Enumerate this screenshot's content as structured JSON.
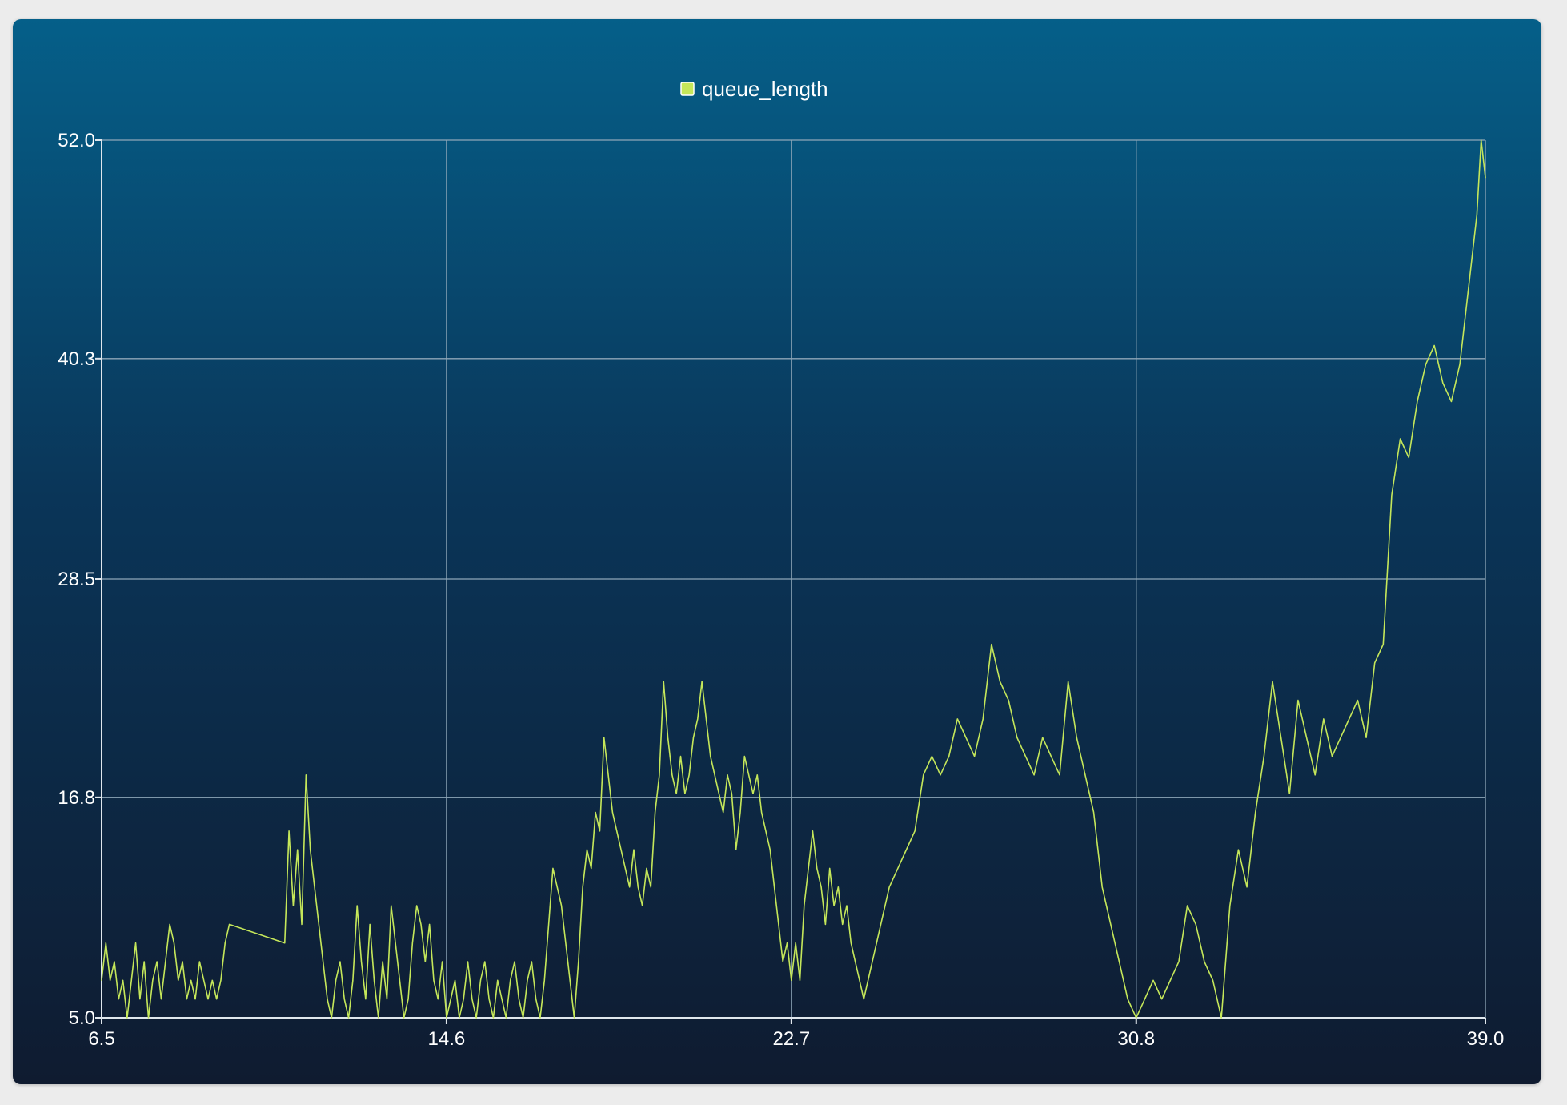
{
  "chart_data": {
    "type": "line",
    "title": "",
    "xlabel": "",
    "ylabel": "",
    "xlim": [
      6.5,
      39.0
    ],
    "ylim": [
      5.0,
      52.0
    ],
    "x_ticks": [
      "6.5",
      "14.6",
      "22.7",
      "30.8",
      "39.0"
    ],
    "y_ticks": [
      "52.0",
      "40.3",
      "28.5",
      "16.8",
      "5.0"
    ],
    "grid": true,
    "legend_position": "top-center",
    "series": [
      {
        "name": "queue_length",
        "color": "#c5e75a",
        "points": [
          [
            6.5,
            7
          ],
          [
            6.6,
            9
          ],
          [
            6.7,
            7
          ],
          [
            6.8,
            8
          ],
          [
            6.9,
            6
          ],
          [
            7.0,
            7
          ],
          [
            7.1,
            5
          ],
          [
            7.2,
            7
          ],
          [
            7.3,
            9
          ],
          [
            7.4,
            6
          ],
          [
            7.5,
            8
          ],
          [
            7.6,
            5
          ],
          [
            7.7,
            7
          ],
          [
            7.8,
            8
          ],
          [
            7.9,
            6
          ],
          [
            8.0,
            8
          ],
          [
            8.1,
            10
          ],
          [
            8.2,
            9
          ],
          [
            8.3,
            7
          ],
          [
            8.4,
            8
          ],
          [
            8.5,
            6
          ],
          [
            8.6,
            7
          ],
          [
            8.7,
            6
          ],
          [
            8.8,
            8
          ],
          [
            8.9,
            7
          ],
          [
            9.0,
            6
          ],
          [
            9.1,
            7
          ],
          [
            9.2,
            6
          ],
          [
            9.3,
            7
          ],
          [
            9.4,
            9
          ],
          [
            9.5,
            10
          ],
          [
            10.8,
            9
          ],
          [
            10.9,
            15
          ],
          [
            11.0,
            11
          ],
          [
            11.1,
            14
          ],
          [
            11.2,
            10
          ],
          [
            11.3,
            18
          ],
          [
            11.4,
            14
          ],
          [
            11.5,
            12
          ],
          [
            11.6,
            10
          ],
          [
            11.7,
            8
          ],
          [
            11.8,
            6
          ],
          [
            11.9,
            5
          ],
          [
            12.0,
            7
          ],
          [
            12.1,
            8
          ],
          [
            12.2,
            6
          ],
          [
            12.3,
            5
          ],
          [
            12.4,
            7
          ],
          [
            12.5,
            11
          ],
          [
            12.6,
            8
          ],
          [
            12.7,
            6
          ],
          [
            12.8,
            10
          ],
          [
            12.9,
            7
          ],
          [
            13.0,
            5
          ],
          [
            13.1,
            8
          ],
          [
            13.2,
            6
          ],
          [
            13.3,
            11
          ],
          [
            13.4,
            9
          ],
          [
            13.5,
            7
          ],
          [
            13.6,
            5
          ],
          [
            13.7,
            6
          ],
          [
            13.8,
            9
          ],
          [
            13.9,
            11
          ],
          [
            14.0,
            10
          ],
          [
            14.1,
            8
          ],
          [
            14.2,
            10
          ],
          [
            14.3,
            7
          ],
          [
            14.4,
            6
          ],
          [
            14.5,
            8
          ],
          [
            14.6,
            5
          ],
          [
            14.7,
            6
          ],
          [
            14.8,
            7
          ],
          [
            14.9,
            5
          ],
          [
            15.0,
            6
          ],
          [
            15.1,
            8
          ],
          [
            15.2,
            6
          ],
          [
            15.3,
            5
          ],
          [
            15.4,
            7
          ],
          [
            15.5,
            8
          ],
          [
            15.6,
            6
          ],
          [
            15.7,
            5
          ],
          [
            15.8,
            7
          ],
          [
            15.9,
            6
          ],
          [
            16.0,
            5
          ],
          [
            16.1,
            7
          ],
          [
            16.2,
            8
          ],
          [
            16.3,
            6
          ],
          [
            16.4,
            5
          ],
          [
            16.5,
            7
          ],
          [
            16.6,
            8
          ],
          [
            16.7,
            6
          ],
          [
            16.8,
            5
          ],
          [
            16.9,
            7
          ],
          [
            17.0,
            10
          ],
          [
            17.1,
            13
          ],
          [
            17.2,
            12
          ],
          [
            17.3,
            11
          ],
          [
            17.4,
            9
          ],
          [
            17.5,
            7
          ],
          [
            17.6,
            5
          ],
          [
            17.7,
            8
          ],
          [
            17.8,
            12
          ],
          [
            17.9,
            14
          ],
          [
            18.0,
            13
          ],
          [
            18.1,
            16
          ],
          [
            18.2,
            15
          ],
          [
            18.3,
            20
          ],
          [
            18.4,
            18
          ],
          [
            18.5,
            16
          ],
          [
            18.6,
            15
          ],
          [
            18.7,
            14
          ],
          [
            18.8,
            13
          ],
          [
            18.9,
            12
          ],
          [
            19.0,
            14
          ],
          [
            19.1,
            12
          ],
          [
            19.2,
            11
          ],
          [
            19.3,
            13
          ],
          [
            19.4,
            12
          ],
          [
            19.5,
            16
          ],
          [
            19.6,
            18
          ],
          [
            19.7,
            23
          ],
          [
            19.8,
            20
          ],
          [
            19.9,
            18
          ],
          [
            20.0,
            17
          ],
          [
            20.1,
            19
          ],
          [
            20.2,
            17
          ],
          [
            20.3,
            18
          ],
          [
            20.4,
            20
          ],
          [
            20.5,
            21
          ],
          [
            20.6,
            23
          ],
          [
            20.7,
            21
          ],
          [
            20.8,
            19
          ],
          [
            20.9,
            18
          ],
          [
            21.0,
            17
          ],
          [
            21.1,
            16
          ],
          [
            21.2,
            18
          ],
          [
            21.3,
            17
          ],
          [
            21.4,
            14
          ],
          [
            21.5,
            16
          ],
          [
            21.6,
            19
          ],
          [
            21.7,
            18
          ],
          [
            21.8,
            17
          ],
          [
            21.9,
            18
          ],
          [
            22.0,
            16
          ],
          [
            22.1,
            15
          ],
          [
            22.2,
            14
          ],
          [
            22.3,
            12
          ],
          [
            22.4,
            10
          ],
          [
            22.5,
            8
          ],
          [
            22.6,
            9
          ],
          [
            22.7,
            7
          ],
          [
            22.8,
            9
          ],
          [
            22.9,
            7
          ],
          [
            23.0,
            11
          ],
          [
            23.1,
            13
          ],
          [
            23.2,
            15
          ],
          [
            23.3,
            13
          ],
          [
            23.4,
            12
          ],
          [
            23.5,
            10
          ],
          [
            23.6,
            13
          ],
          [
            23.7,
            11
          ],
          [
            23.8,
            12
          ],
          [
            23.9,
            10
          ],
          [
            24.0,
            11
          ],
          [
            24.1,
            9
          ],
          [
            24.2,
            8
          ],
          [
            24.3,
            7
          ],
          [
            24.4,
            6
          ],
          [
            24.6,
            8
          ],
          [
            24.8,
            10
          ],
          [
            25.0,
            12
          ],
          [
            25.2,
            13
          ],
          [
            25.4,
            14
          ],
          [
            25.6,
            15
          ],
          [
            25.8,
            18
          ],
          [
            26.0,
            19
          ],
          [
            26.2,
            18
          ],
          [
            26.4,
            19
          ],
          [
            26.6,
            21
          ],
          [
            26.8,
            20
          ],
          [
            27.0,
            19
          ],
          [
            27.2,
            21
          ],
          [
            27.4,
            25
          ],
          [
            27.6,
            23
          ],
          [
            27.8,
            22
          ],
          [
            28.0,
            20
          ],
          [
            28.2,
            19
          ],
          [
            28.4,
            18
          ],
          [
            28.6,
            20
          ],
          [
            28.8,
            19
          ],
          [
            29.0,
            18
          ],
          [
            29.2,
            23
          ],
          [
            29.4,
            20
          ],
          [
            29.6,
            18
          ],
          [
            29.8,
            16
          ],
          [
            30.0,
            12
          ],
          [
            30.2,
            10
          ],
          [
            30.4,
            8
          ],
          [
            30.6,
            6
          ],
          [
            30.8,
            5
          ],
          [
            31.0,
            6
          ],
          [
            31.2,
            7
          ],
          [
            31.4,
            6
          ],
          [
            31.6,
            7
          ],
          [
            31.8,
            8
          ],
          [
            32.0,
            11
          ],
          [
            32.2,
            10
          ],
          [
            32.4,
            8
          ],
          [
            32.6,
            7
          ],
          [
            32.8,
            5
          ],
          [
            33.0,
            11
          ],
          [
            33.2,
            14
          ],
          [
            33.4,
            12
          ],
          [
            33.6,
            16
          ],
          [
            33.8,
            19
          ],
          [
            34.0,
            23
          ],
          [
            34.2,
            20
          ],
          [
            34.4,
            17
          ],
          [
            34.6,
            22
          ],
          [
            34.8,
            20
          ],
          [
            35.0,
            18
          ],
          [
            35.2,
            21
          ],
          [
            35.4,
            19
          ],
          [
            35.6,
            20
          ],
          [
            35.8,
            21
          ],
          [
            36.0,
            22
          ],
          [
            36.2,
            20
          ],
          [
            36.4,
            24
          ],
          [
            36.6,
            25
          ],
          [
            36.8,
            33
          ],
          [
            37.0,
            36
          ],
          [
            37.2,
            35
          ],
          [
            37.4,
            38
          ],
          [
            37.6,
            40
          ],
          [
            37.8,
            41
          ],
          [
            38.0,
            39
          ],
          [
            38.2,
            38
          ],
          [
            38.4,
            40
          ],
          [
            38.6,
            44
          ],
          [
            38.8,
            48
          ],
          [
            38.9,
            52
          ],
          [
            39.0,
            50
          ]
        ]
      }
    ]
  }
}
